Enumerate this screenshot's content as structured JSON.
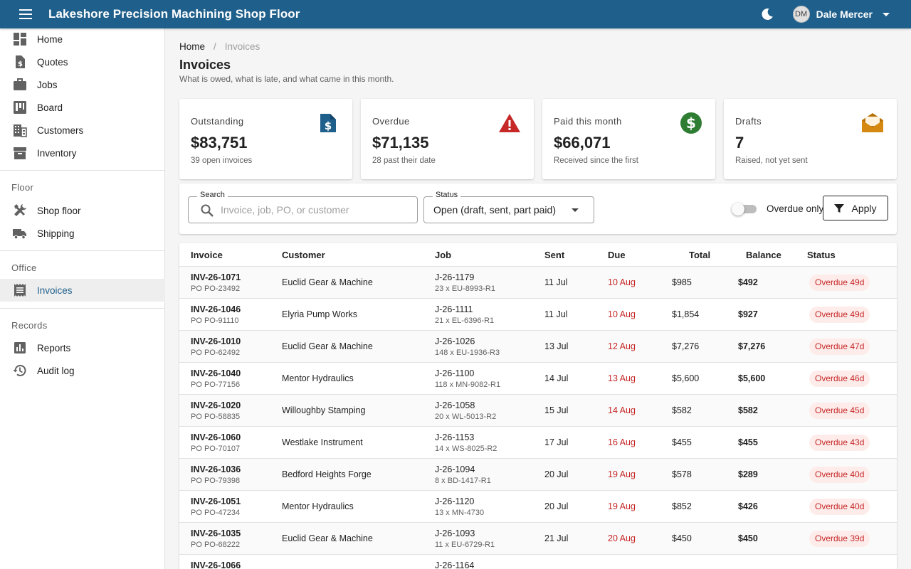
{
  "app": {
    "title": "Lakeshore Precision Machining Shop Floor",
    "user_initials": "DM",
    "user_name": "Dale Mercer"
  },
  "sidebar": {
    "top_items": [
      {
        "label": "Home",
        "icon": "dashboard-icon"
      },
      {
        "label": "Quotes",
        "icon": "quote-doc-icon"
      },
      {
        "label": "Jobs",
        "icon": "briefcase-icon"
      },
      {
        "label": "Board",
        "icon": "board-icon"
      },
      {
        "label": "Customers",
        "icon": "building-icon"
      },
      {
        "label": "Inventory",
        "icon": "archive-icon"
      }
    ],
    "sections": {
      "floor": "Floor",
      "office": "Office",
      "records": "Records"
    },
    "floor_items": [
      {
        "label": "Shop floor",
        "icon": "tools-icon"
      },
      {
        "label": "Shipping",
        "icon": "truck-icon"
      }
    ],
    "office_items": [
      {
        "label": "Invoices",
        "icon": "receipt-icon",
        "active": true
      }
    ],
    "records_items": [
      {
        "label": "Reports",
        "icon": "chart-icon"
      },
      {
        "label": "Audit log",
        "icon": "history-icon"
      }
    ]
  },
  "breadcrumb": {
    "home": "Home",
    "separator": "/",
    "current": "Invoices"
  },
  "page": {
    "title": "Invoices",
    "subtitle": "What is owed, what is late, and what came in this month."
  },
  "cards": [
    {
      "label": "Outstanding",
      "value": "$83,751",
      "sub": "39 open invoices",
      "icon": "invoice-dollar-icon",
      "color": "#1f5f8b"
    },
    {
      "label": "Overdue",
      "value": "$71,135",
      "sub": "28 past their date",
      "icon": "warning-icon",
      "color": "#c62828"
    },
    {
      "label": "Paid this month",
      "value": "$66,071",
      "sub": "Received since the first",
      "icon": "dollar-circle-icon",
      "color": "#2e7d32"
    },
    {
      "label": "Drafts",
      "value": "7",
      "sub": "Raised, not yet sent",
      "icon": "envelope-open-icon",
      "color": "#b8720a"
    }
  ],
  "filters": {
    "search_label": "Search",
    "search_placeholder": "Invoice, job, PO, or customer",
    "search_value": "",
    "status_label": "Status",
    "status_value": "Open (draft, sent, part paid)",
    "toggle_label": "Overdue only",
    "toggle_on": false,
    "apply_label": "Apply"
  },
  "table": {
    "headers": [
      "Invoice",
      "Customer",
      "Job",
      "Sent",
      "Due",
      "Total",
      "Balance",
      "Status"
    ],
    "rows": [
      {
        "invoice": "INV-26-1071",
        "po": "PO PO-23492",
        "customer": "Euclid Gear & Machine",
        "job": "J-26-1179",
        "job_detail": "23 x EU-8993-R1",
        "sent": "11 Jul",
        "due": "10 Aug",
        "total": "$985",
        "balance": "$492",
        "status": "Overdue 49d"
      },
      {
        "invoice": "INV-26-1046",
        "po": "PO PO-91110",
        "customer": "Elyria Pump Works",
        "job": "J-26-1111",
        "job_detail": "21 x EL-6396-R1",
        "sent": "11 Jul",
        "due": "10 Aug",
        "total": "$1,854",
        "balance": "$927",
        "status": "Overdue 49d"
      },
      {
        "invoice": "INV-26-1010",
        "po": "PO PO-62492",
        "customer": "Euclid Gear & Machine",
        "job": "J-26-1026",
        "job_detail": "148 x EU-1936-R3",
        "sent": "13 Jul",
        "due": "12 Aug",
        "total": "$7,276",
        "balance": "$7,276",
        "status": "Overdue 47d"
      },
      {
        "invoice": "INV-26-1040",
        "po": "PO PO-77156",
        "customer": "Mentor Hydraulics",
        "job": "J-26-1100",
        "job_detail": "118 x MN-9082-R1",
        "sent": "14 Jul",
        "due": "13 Aug",
        "total": "$5,600",
        "balance": "$5,600",
        "status": "Overdue 46d"
      },
      {
        "invoice": "INV-26-1020",
        "po": "PO PO-58835",
        "customer": "Willoughby Stamping",
        "job": "J-26-1058",
        "job_detail": "20 x WL-5013-R2",
        "sent": "15 Jul",
        "due": "14 Aug",
        "total": "$582",
        "balance": "$582",
        "status": "Overdue 45d"
      },
      {
        "invoice": "INV-26-1060",
        "po": "PO PO-70107",
        "customer": "Westlake Instrument",
        "job": "J-26-1153",
        "job_detail": "14 x WS-8025-R2",
        "sent": "17 Jul",
        "due": "16 Aug",
        "total": "$455",
        "balance": "$455",
        "status": "Overdue 43d"
      },
      {
        "invoice": "INV-26-1036",
        "po": "PO PO-79398",
        "customer": "Bedford Heights Forge",
        "job": "J-26-1094",
        "job_detail": "8 x BD-1417-R1",
        "sent": "20 Jul",
        "due": "19 Aug",
        "total": "$578",
        "balance": "$289",
        "status": "Overdue 40d"
      },
      {
        "invoice": "INV-26-1051",
        "po": "PO PO-47234",
        "customer": "Mentor Hydraulics",
        "job": "J-26-1120",
        "job_detail": "13 x MN-4730",
        "sent": "20 Jul",
        "due": "19 Aug",
        "total": "$852",
        "balance": "$426",
        "status": "Overdue 40d"
      },
      {
        "invoice": "INV-26-1035",
        "po": "PO PO-68222",
        "customer": "Euclid Gear & Machine",
        "job": "J-26-1093",
        "job_detail": "11 x EU-6729-R1",
        "sent": "21 Jul",
        "due": "20 Aug",
        "total": "$450",
        "balance": "$450",
        "status": "Overdue 39d"
      },
      {
        "invoice": "INV-26-1066",
        "po": "",
        "customer": "",
        "job": "J-26-1164",
        "job_detail": "",
        "sent": "",
        "due": "",
        "total": "",
        "balance": "",
        "status": ""
      }
    ]
  },
  "colors": {
    "appbar": "#1f5f8b",
    "overdue": "#c62828",
    "badge_bg": "#fdecea"
  }
}
